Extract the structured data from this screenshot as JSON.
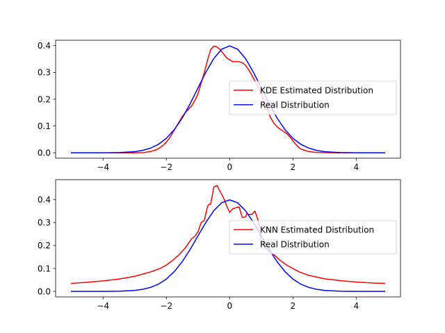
{
  "chart_data": [
    {
      "type": "line",
      "title": "",
      "xlabel": "",
      "ylabel": "",
      "xlim": [
        -5.5,
        5.4
      ],
      "ylim": [
        -0.02,
        0.42
      ],
      "xticks": [
        -4,
        -2,
        0,
        2,
        4
      ],
      "xtick_labels": [
        "−4",
        "−2",
        "0",
        "2",
        "4"
      ],
      "yticks": [
        0.0,
        0.1,
        0.2,
        0.3,
        0.4
      ],
      "ytick_labels": [
        "0.0",
        "0.1",
        "0.2",
        "0.3",
        "0.4"
      ],
      "grid": false,
      "legend_position": "center-right",
      "series": [
        {
          "name": "KDE Estimated Distribution",
          "color": "#ff0000",
          "x": [
            -5,
            -4,
            -3.5,
            -3,
            -2.7,
            -2.5,
            -2.3,
            -2.1,
            -2.0,
            -1.9,
            -1.8,
            -1.7,
            -1.6,
            -1.5,
            -1.4,
            -1.3,
            -1.2,
            -1.1,
            -1.0,
            -0.9,
            -0.8,
            -0.7,
            -0.6,
            -0.5,
            -0.4,
            -0.3,
            -0.2,
            -0.1,
            0.0,
            0.1,
            0.2,
            0.3,
            0.4,
            0.5,
            0.6,
            0.7,
            0.8,
            0.9,
            1.0,
            1.1,
            1.2,
            1.3,
            1.4,
            1.5,
            1.6,
            1.7,
            1.8,
            1.9,
            2.0,
            2.1,
            2.2,
            2.3,
            2.4,
            2.5,
            2.7,
            3.0,
            3.5,
            4.0,
            4.9
          ],
          "y": [
            0.0,
            0.0,
            0.0,
            0.0,
            0.001,
            0.005,
            0.012,
            0.028,
            0.04,
            0.055,
            0.075,
            0.095,
            0.115,
            0.135,
            0.15,
            0.163,
            0.175,
            0.195,
            0.22,
            0.26,
            0.3,
            0.345,
            0.385,
            0.398,
            0.395,
            0.385,
            0.37,
            0.355,
            0.347,
            0.34,
            0.34,
            0.34,
            0.336,
            0.327,
            0.31,
            0.29,
            0.268,
            0.245,
            0.22,
            0.19,
            0.16,
            0.13,
            0.11,
            0.097,
            0.088,
            0.08,
            0.072,
            0.06,
            0.045,
            0.03,
            0.018,
            0.012,
            0.008,
            0.005,
            0.002,
            0.001,
            0.0,
            0.0,
            0.0
          ]
        },
        {
          "name": "Real Distribution",
          "color": "#0000ff",
          "x": [
            -5,
            -4.5,
            -4,
            -3.5,
            -3,
            -2.75,
            -2.5,
            -2.25,
            -2,
            -1.75,
            -1.5,
            -1.25,
            -1,
            -0.75,
            -0.5,
            -0.25,
            0,
            0.25,
            0.5,
            0.75,
            1,
            1.25,
            1.5,
            1.75,
            2,
            2.25,
            2.5,
            2.75,
            3,
            3.5,
            4,
            4.5,
            4.9
          ],
          "y": [
            0.0,
            0.0,
            0.0001,
            0.0009,
            0.0044,
            0.0091,
            0.0175,
            0.0317,
            0.054,
            0.0863,
            0.1295,
            0.1826,
            0.242,
            0.3011,
            0.3521,
            0.3867,
            0.3989,
            0.3867,
            0.3521,
            0.3011,
            0.242,
            0.1826,
            0.1295,
            0.0863,
            0.054,
            0.0317,
            0.0175,
            0.0091,
            0.0044,
            0.0009,
            0.0001,
            0.0,
            0.0
          ]
        }
      ]
    },
    {
      "type": "line",
      "title": "",
      "xlabel": "",
      "ylabel": "",
      "xlim": [
        -5.5,
        5.4
      ],
      "ylim": [
        -0.024,
        0.487
      ],
      "xticks": [
        -4,
        -2,
        0,
        2,
        4
      ],
      "xtick_labels": [
        "−4",
        "−2",
        "0",
        "2",
        "4"
      ],
      "yticks": [
        0.0,
        0.1,
        0.2,
        0.3,
        0.4
      ],
      "ytick_labels": [
        "0.0",
        "0.1",
        "0.2",
        "0.3",
        "0.4"
      ],
      "grid": false,
      "legend_position": "center-right",
      "series": [
        {
          "name": "KNN Estimated Distribution",
          "color": "#ff0000",
          "x": [
            -5,
            -4.5,
            -4,
            -3.5,
            -3,
            -2.5,
            -2.2,
            -2,
            -1.8,
            -1.6,
            -1.4,
            -1.2,
            -1.1,
            -1.0,
            -0.9,
            -0.8,
            -0.7,
            -0.65,
            -0.6,
            -0.5,
            -0.4,
            -0.3,
            -0.2,
            -0.1,
            0.0,
            0.1,
            0.2,
            0.3,
            0.4,
            0.5,
            0.55,
            0.6,
            0.7,
            0.8,
            0.9,
            1.0,
            1.2,
            1.4,
            1.6,
            1.8,
            2.0,
            2.2,
            2.5,
            3.0,
            3.5,
            4.0,
            4.5,
            4.9
          ],
          "y": [
            0.035,
            0.04,
            0.046,
            0.054,
            0.066,
            0.085,
            0.1,
            0.115,
            0.135,
            0.16,
            0.19,
            0.23,
            0.24,
            0.26,
            0.3,
            0.31,
            0.37,
            0.38,
            0.38,
            0.455,
            0.462,
            0.435,
            0.41,
            0.375,
            0.345,
            0.36,
            0.365,
            0.368,
            0.322,
            0.325,
            0.34,
            0.335,
            0.335,
            0.35,
            0.31,
            0.21,
            0.18,
            0.16,
            0.135,
            0.115,
            0.1,
            0.085,
            0.07,
            0.055,
            0.047,
            0.041,
            0.037,
            0.035
          ]
        },
        {
          "name": "Real Distribution",
          "color": "#0000ff",
          "x": [
            -5,
            -4.5,
            -4,
            -3.5,
            -3,
            -2.75,
            -2.5,
            -2.25,
            -2,
            -1.75,
            -1.5,
            -1.25,
            -1,
            -0.75,
            -0.5,
            -0.25,
            0,
            0.25,
            0.5,
            0.75,
            1,
            1.25,
            1.5,
            1.75,
            2,
            2.25,
            2.5,
            2.75,
            3,
            3.5,
            4,
            4.5,
            4.9
          ],
          "y": [
            0.0,
            0.0,
            0.0001,
            0.0009,
            0.0044,
            0.0091,
            0.0175,
            0.0317,
            0.054,
            0.0863,
            0.1295,
            0.1826,
            0.242,
            0.3011,
            0.3521,
            0.3867,
            0.3989,
            0.3867,
            0.3521,
            0.3011,
            0.242,
            0.1826,
            0.1295,
            0.0863,
            0.054,
            0.0317,
            0.0175,
            0.0091,
            0.0044,
            0.0009,
            0.0001,
            0.0,
            0.0
          ]
        }
      ]
    }
  ]
}
